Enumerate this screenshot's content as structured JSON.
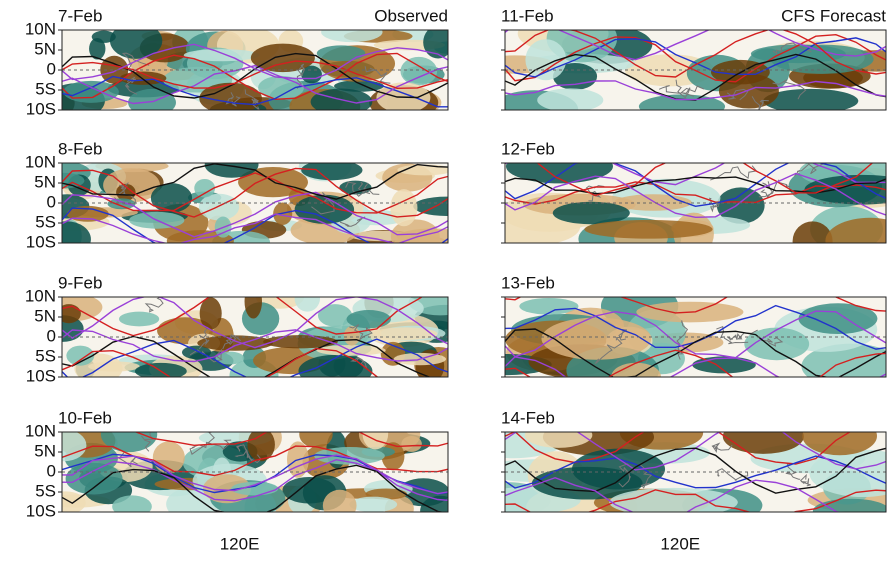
{
  "panels": [
    {
      "label": "7-Feb",
      "note": "Observed"
    },
    {
      "label": "8-Feb"
    },
    {
      "label": "9-Feb"
    },
    {
      "label": "10-Feb"
    },
    {
      "label": "11-Feb",
      "note": "CFS Forecast"
    },
    {
      "label": "12-Feb"
    },
    {
      "label": "13-Feb"
    },
    {
      "label": "14-Feb"
    }
  ],
  "y_axis_labels": [
    "10N",
    "5N",
    "0",
    "5S",
    "10S"
  ],
  "x_axis_label": "120E"
}
